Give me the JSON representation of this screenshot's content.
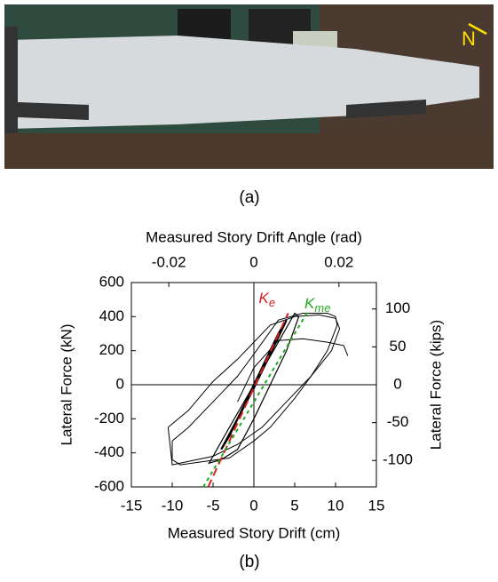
{
  "photo": {
    "north_label": "N"
  },
  "captions": {
    "a": "(a)",
    "b": "(b)"
  },
  "chart_data": {
    "type": "line",
    "xlabel": "Measured Story Drift (cm)",
    "x2label": "Measured Story Drift Angle (rad)",
    "ylabel": "Lateral Force (kN)",
    "y2label": "Lateral Force (kips)",
    "xlim": [
      -15,
      15
    ],
    "xticks": [
      -15,
      -10,
      -5,
      0,
      5,
      10,
      15
    ],
    "x2lim": [
      -0.0288,
      0.0288
    ],
    "x2ticks": [
      -0.02,
      0,
      0.02
    ],
    "ylim": [
      -600,
      600
    ],
    "yticks": [
      -600,
      -400,
      -200,
      0,
      200,
      400,
      600
    ],
    "y2lim": [
      -134.9,
      134.9
    ],
    "y2ticks": [
      -100,
      -50,
      0,
      50,
      100
    ],
    "zero_lines": true,
    "series": [
      {
        "color": "#000000",
        "width": 2.2,
        "x": [
          -4,
          -2,
          0,
          2,
          4,
          3,
          1,
          -1,
          -3,
          -4
        ],
        "values": [
          -380,
          -200,
          -20,
          180,
          380,
          300,
          100,
          -100,
          -300,
          -380
        ]
      },
      {
        "color": "#000000",
        "width": 1.2,
        "x": [
          -5,
          -3,
          0,
          3,
          5,
          5.5,
          4,
          2,
          0,
          -2,
          -4,
          -5.5,
          -5
        ],
        "values": [
          -420,
          -250,
          0,
          250,
          420,
          400,
          200,
          0,
          -200,
          -380,
          -440,
          -460,
          -420
        ]
      },
      {
        "color": "#000000",
        "width": 1,
        "x": [
          -10,
          -8,
          -5,
          -2,
          0,
          3,
          6,
          9,
          10,
          10.2,
          9,
          7,
          5,
          2,
          0,
          -3,
          -6,
          -9,
          -10,
          -10
        ],
        "values": [
          -330,
          -250,
          -100,
          50,
          180,
          380,
          420,
          420,
          400,
          350,
          200,
          50,
          -80,
          -250,
          -330,
          -430,
          -450,
          -470,
          -440,
          -330
        ]
      },
      {
        "color": "#000000",
        "width": 1,
        "x": [
          -10.5,
          -8,
          -5,
          -2,
          0,
          2,
          5,
          8,
          10,
          10.5,
          9.5,
          7,
          4,
          1,
          -2,
          -5,
          -8,
          -10,
          -10.5
        ],
        "values": [
          -250,
          -150,
          20,
          150,
          250,
          350,
          400,
          410,
          390,
          330,
          200,
          50,
          -100,
          -250,
          -350,
          -420,
          -450,
          -470,
          -250
        ]
      },
      {
        "color": "#000000",
        "width": 1,
        "x": [
          -2,
          0,
          3,
          6,
          9,
          10,
          11,
          11.5
        ],
        "values": [
          -100,
          100,
          260,
          270,
          250,
          240,
          230,
          170
        ]
      },
      {
        "color": "#d62020",
        "width": 2,
        "dash": "9 5",
        "x": [
          -5.6,
          4.2
        ],
        "values": [
          -600,
          420
        ]
      },
      {
        "color": "#22aa22",
        "width": 2,
        "dash": "4 4",
        "x": [
          -6.2,
          6.6
        ],
        "values": [
          -600,
          430
        ]
      }
    ],
    "annotations": [
      {
        "text": "K",
        "sub": "e",
        "color": "#d62020",
        "x": 0.6,
        "y": 500
      },
      {
        "text": "K",
        "sub": "me",
        "color": "#22aa22",
        "x": 6.2,
        "y": 470
      }
    ]
  }
}
